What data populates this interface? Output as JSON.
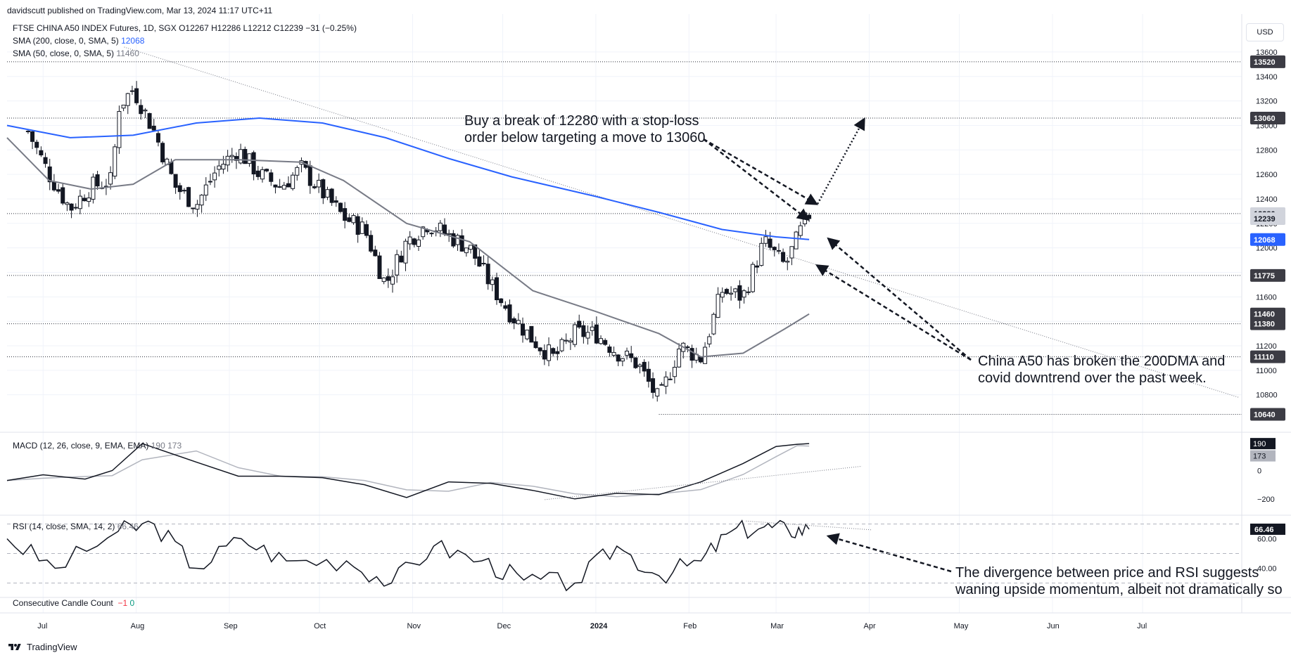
{
  "header": {
    "publisher": "davidscutt published on TradingView.com, Mar 13, 2024 11:17 UTC+11",
    "symbol_line": "FTSE CHINA A50 INDEX Futures, 1D, SGX  O12267  H12286  L12212  C12239  −31 (−0.25%)",
    "sma200_label": "SMA (200, close, 0, SMA, 5)",
    "sma200_value": "12068",
    "sma50_label": "SMA (50, close, 0, SMA, 5)",
    "sma50_value": "11460",
    "macd_label": "MACD (12, 26, close, 9, EMA, EMA)",
    "macd_values": "190  173",
    "rsi_label": "RSI (14, close, SMA, 14, 2)",
    "rsi_value": "66.46",
    "candle_count_label": "Consecutive Candle Count",
    "candle_count_red": "−1",
    "candle_count_green": "0"
  },
  "currency_button": "USD",
  "annotations": {
    "buy_line1": "Buy a break of 12280 with a stop-loss",
    "buy_line2": "order below targeting a move to 13060",
    "china_line1": "China A50 has broken the 200DMA and",
    "china_line2": "covid downtrend over the past week.",
    "rsi_line1": "The divergence between price and RSI suggests",
    "rsi_line2": "waning upside momentum, albeit not dramatically so"
  },
  "footer": {
    "brand": "TradingView"
  },
  "colors": {
    "sma200": "#2962ff",
    "sma50": "#787b86",
    "candle": "#131722",
    "badge_dark": "#3c3c44",
    "badge_blue": "#2962ff",
    "grid": "#f0f3fa"
  },
  "chart_data": [
    {
      "type": "candlestick",
      "title": "FTSE CHINA A50 INDEX Futures, 1D, SGX",
      "x_labels": [
        "Jul",
        "Aug",
        "Sep",
        "Oct",
        "Nov",
        "Dec",
        "2024",
        "Feb",
        "Mar",
        "Apr",
        "May",
        "Jun",
        "Jul"
      ],
      "y_ticks": [
        10800,
        11000,
        11200,
        11400,
        11600,
        11800,
        12000,
        12200,
        12400,
        12600,
        12800,
        13000,
        13200,
        13400,
        13600
      ],
      "ylim": [
        10580,
        13680
      ],
      "price_levels": [
        13520,
        13060,
        12280,
        11775,
        11380,
        11110,
        10640
      ],
      "last_price": 12239,
      "sma200_last": 12068,
      "sma50_last": 11460,
      "close_points": [
        [
          "2023-06-26",
          12950
        ],
        [
          "2023-07-03",
          12600
        ],
        [
          "2023-07-10",
          12320
        ],
        [
          "2023-07-17",
          12500
        ],
        [
          "2023-07-24",
          12550
        ],
        [
          "2023-07-26",
          13150
        ],
        [
          "2023-07-31",
          13300
        ],
        [
          "2023-08-07",
          12950
        ],
        [
          "2023-08-14",
          12500
        ],
        [
          "2023-08-21",
          12350
        ],
        [
          "2023-08-28",
          12650
        ],
        [
          "2023-09-04",
          12800
        ],
        [
          "2023-09-11",
          12600
        ],
        [
          "2023-09-18",
          12500
        ],
        [
          "2023-09-25",
          12650
        ],
        [
          "2023-10-09",
          12250
        ],
        [
          "2023-10-16",
          12150
        ],
        [
          "2023-10-23",
          11700
        ],
        [
          "2023-10-30",
          12050
        ],
        [
          "2023-11-06",
          12200
        ],
        [
          "2023-11-13",
          12100
        ],
        [
          "2023-11-20",
          12000
        ],
        [
          "2023-11-27",
          11700
        ],
        [
          "2023-12-04",
          11450
        ],
        [
          "2023-12-11",
          11250
        ],
        [
          "2023-12-18",
          11100
        ],
        [
          "2023-12-25",
          11300
        ],
        [
          "2024-01-01",
          11300
        ],
        [
          "2024-01-08",
          11150
        ],
        [
          "2024-01-15",
          11050
        ],
        [
          "2024-01-22",
          10750
        ],
        [
          "2024-01-29",
          11200
        ],
        [
          "2024-02-05",
          11100
        ],
        [
          "2024-02-12",
          11650
        ],
        [
          "2024-02-19",
          11600
        ],
        [
          "2024-02-26",
          12050
        ],
        [
          "2024-03-04",
          11850
        ],
        [
          "2024-03-11",
          12239
        ]
      ],
      "annotations": [
        "Buy a break of 12280 with a stop-loss order below targeting a move to 13060",
        "China A50 has broken the 200DMA and covid downtrend over the past week."
      ]
    },
    {
      "type": "line",
      "title": "MACD (12, 26, close, 9, EMA, EMA)",
      "y_ticks": [
        -200,
        0
      ],
      "last_values": {
        "macd": 190,
        "signal": 173
      }
    },
    {
      "type": "line",
      "title": "RSI (14, close, SMA, 14, 2)",
      "y_ticks": [
        40.0,
        60.0
      ],
      "last_value": 66.46,
      "annotation": "The divergence between price and RSI suggests waning upside momentum, albeit not dramatically so"
    }
  ]
}
